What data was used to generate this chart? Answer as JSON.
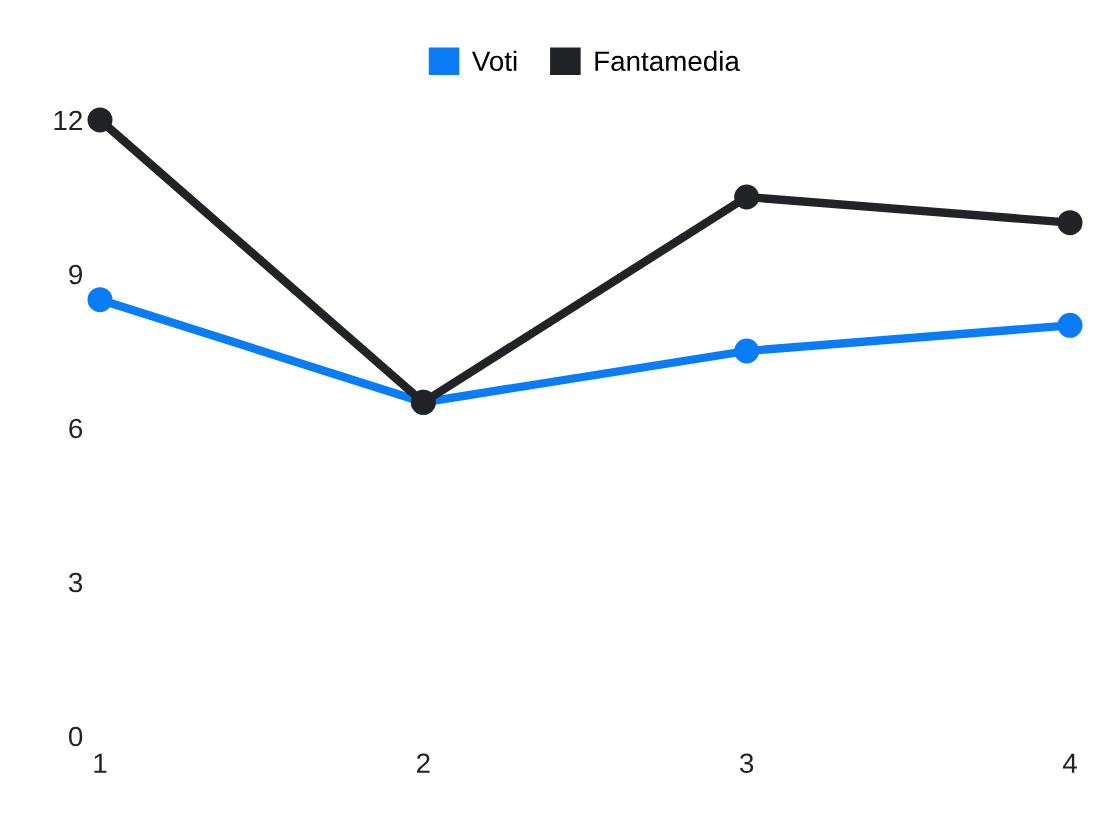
{
  "chart_data": {
    "type": "line",
    "x": [
      1,
      2,
      3,
      4
    ],
    "series": [
      {
        "name": "Voti",
        "color": "#0a7cf5",
        "values": [
          8.5,
          6.5,
          7.5,
          8
        ]
      },
      {
        "name": "Fantamedia",
        "color": "#212326",
        "values": [
          12,
          6.5,
          10.5,
          10
        ]
      }
    ],
    "xlim": [
      1,
      4
    ],
    "xticks": [
      1,
      2,
      3,
      4
    ],
    "ylim": [
      0,
      12
    ],
    "yticks": [
      0,
      3,
      6,
      9,
      12
    ],
    "grid": false,
    "legend": "top",
    "marker": "circle",
    "line_style": "solid"
  }
}
